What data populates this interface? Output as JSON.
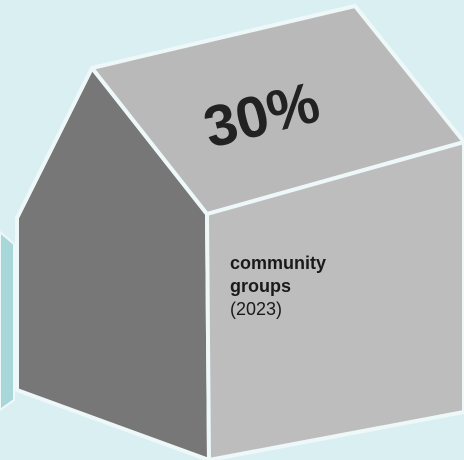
{
  "infographic": {
    "percentage": "30%",
    "label_line1": "community",
    "label_line2": "groups",
    "year": "(2023)"
  },
  "colors": {
    "background": "#daeff2",
    "roof": "#b9b9b9",
    "left_wall": "#777777",
    "front_wall": "#bdbdbd",
    "edge": "#eef8f9",
    "neighbor_house": "#a8d7da"
  }
}
